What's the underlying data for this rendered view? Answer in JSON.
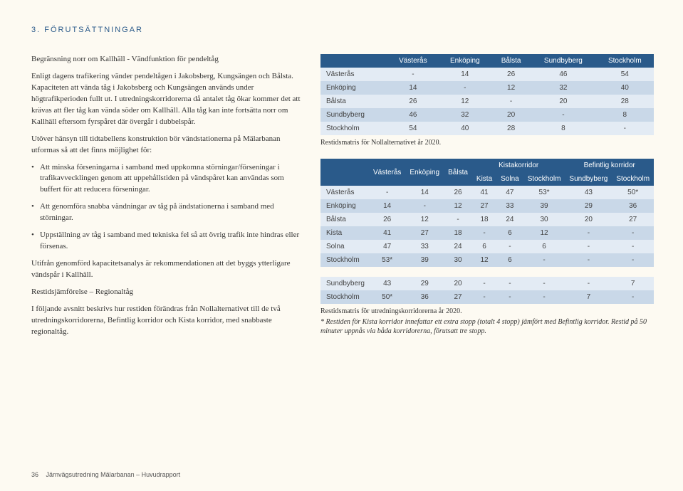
{
  "heading": "3. FÖRUTSÄTTNINGAR",
  "left": {
    "sub1": "Begränsning norr om Kallhäll - Vändfunktion för pendeltåg",
    "p1": "Enligt dagens trafikering vänder pendeltågen i Jakobsberg, Kungsängen och Bålsta. Kapaciteten att vända tåg i Jakobsberg och Kungsängen används under högtrafikperioden fullt ut. I utredningskorridorerna då antalet tåg ökar kommer det att krävas att fler tåg kan vända söder om Kallhäll. Alla tåg kan inte fortsätta norr om Kallhäll eftersom fyrspåret där övergår i dubbelspår.",
    "p2": "Utöver hänsyn till tidtabellens konstruktion bör vändstationerna på Mälarbanan utformas så att det finns möjlighet för:",
    "b1": "Att minska förseningarna i samband med uppkomna störningar/förseningar i trafikavvecklingen genom att uppehållstiden på vändspåret kan användas som buffert för att reducera förseningar.",
    "b2": "Att genomföra snabba vändningar av tåg på ändstationerna i samband med störningar.",
    "b3": "Uppställning av tåg i samband med tekniska fel så att övrig trafik inte hindras eller försenas.",
    "p3": "Utifrån genomförd kapacitetsanalys är rekommendationen att det byggs ytterligare vändspår i Kallhäll.",
    "sub2": "Restidsjämförelse – Regionaltåg",
    "p4": "I följande avsnitt beskrivs hur restiden förändras från Nollalternativet till de två utredningskorridorerna, Befintlig korridor och Kista korridor, med snabbaste regionaltåg."
  },
  "table1": {
    "headers": [
      "",
      "Västerås",
      "Enköping",
      "Bålsta",
      "Sundbyberg",
      "Stockholm"
    ],
    "rows": [
      [
        "Västerås",
        "-",
        "14",
        "26",
        "46",
        "54"
      ],
      [
        "Enköping",
        "14",
        "-",
        "12",
        "32",
        "40"
      ],
      [
        "Bålsta",
        "26",
        "12",
        "-",
        "20",
        "28"
      ],
      [
        "Sundbyberg",
        "46",
        "32",
        "20",
        "-",
        "8"
      ],
      [
        "Stockholm",
        "54",
        "40",
        "28",
        "8",
        "-"
      ]
    ],
    "caption": "Restidsmatris för Nollalternativet år 2020."
  },
  "table2": {
    "topHeaders": [
      "",
      "Västerås",
      "Enköping",
      "Bålsta",
      "Kistakorridor",
      "Befintlig korridor"
    ],
    "subHeaders": [
      "Kista",
      "Solna",
      "Stockholm",
      "Sundbyberg",
      "Stockholm"
    ],
    "rows": [
      [
        "Västerås",
        "-",
        "14",
        "26",
        "41",
        "47",
        "53*",
        "43",
        "50*"
      ],
      [
        "Enköping",
        "14",
        "-",
        "12",
        "27",
        "33",
        "39",
        "29",
        "36"
      ],
      [
        "Bålsta",
        "26",
        "12",
        "-",
        "18",
        "24",
        "30",
        "20",
        "27"
      ],
      [
        "Kista",
        "41",
        "27",
        "18",
        "-",
        "6",
        "12",
        "-",
        "-"
      ],
      [
        "Solna",
        "47",
        "33",
        "24",
        "6",
        "-",
        "6",
        "-",
        "-"
      ],
      [
        "Stockholm",
        "53*",
        "39",
        "30",
        "12",
        "6",
        "-",
        "-",
        "-"
      ]
    ],
    "rows2": [
      [
        "Sundbyberg",
        "43",
        "29",
        "20",
        "-",
        "-",
        "-",
        "-",
        "7"
      ],
      [
        "Stockholm",
        "50*",
        "36",
        "27",
        "-",
        "-",
        "-",
        "7",
        "-"
      ]
    ],
    "caption": "Restidsmatris för utredningskorridorerna år 2020.",
    "footnote": "* Restiden för Kista korridor innefattar ett extra stopp (totalt 4 stopp) jämfört med Befintlig korridor. Restid på 50 minuter uppnås via båda korridorerna, förutsatt tre stopp."
  },
  "footer": {
    "page": "36",
    "title": "Järnvägsutredning Mälarbanan – Huvudrapport"
  }
}
